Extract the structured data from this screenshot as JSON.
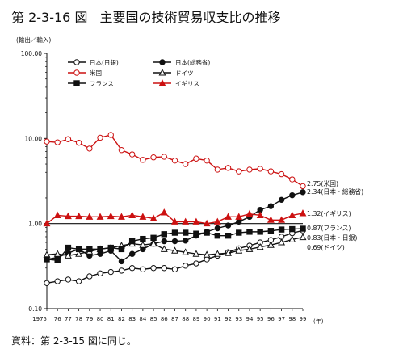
{
  "page": {
    "figure_number": "第 2-3-16 図",
    "figure_title": "主要国の技術貿易収支比の推移",
    "source_note": "資料：第 2-3-15 図に同じ。"
  },
  "chart_data": {
    "type": "line",
    "title": "主要国の技術貿易収支比の推移",
    "ylabel": "(輸出／輸入)",
    "xlabel": "(年)",
    "yscale": "log",
    "ylim": [
      0.1,
      100
    ],
    "yticks": [
      100,
      10,
      1,
      0.1
    ],
    "ytick_labels": [
      "100.00",
      "10.00",
      "1.00",
      "0.10"
    ],
    "reference_line": 1,
    "x": [
      1975,
      1976,
      1977,
      1978,
      1979,
      1980,
      1981,
      1982,
      1983,
      1984,
      1985,
      1986,
      1987,
      1988,
      1989,
      1990,
      1991,
      1992,
      1993,
      1994,
      1995,
      1996,
      1997,
      1998,
      1999
    ],
    "xtick_labels": [
      "1975",
      "76",
      "77",
      "78",
      "79",
      "80",
      "81",
      "82",
      "83",
      "84",
      "85",
      "86",
      "87",
      "88",
      "89",
      "90",
      "91",
      "92",
      "93",
      "94",
      "95",
      "96",
      "97",
      "98",
      "99"
    ],
    "legend": {
      "placement": "top",
      "columns": 2
    },
    "series": [
      {
        "name": "日本(日銀)",
        "color": "#111111",
        "marker": "open-circle",
        "end_label": "0.83(日本・日銀)",
        "values": [
          0.2,
          0.21,
          0.22,
          0.21,
          0.24,
          0.26,
          0.27,
          0.28,
          0.3,
          0.29,
          0.3,
          0.3,
          0.29,
          0.32,
          0.34,
          0.38,
          0.42,
          0.46,
          0.51,
          0.55,
          0.6,
          0.64,
          0.7,
          0.77,
          0.83
        ]
      },
      {
        "name": "日本(総務省)",
        "color": "#111111",
        "marker": "filled-circle",
        "end_label": "2.34(日本・総務省)",
        "values": [
          0.38,
          0.4,
          0.45,
          0.5,
          0.42,
          0.44,
          0.48,
          0.36,
          0.44,
          0.5,
          0.58,
          0.62,
          0.62,
          0.63,
          0.72,
          0.8,
          0.88,
          0.95,
          1.05,
          1.2,
          1.45,
          1.6,
          1.9,
          2.15,
          2.34
        ]
      },
      {
        "name": "米国",
        "color": "#cc1111",
        "marker": "open-circle",
        "end_label": "2.75(米国)",
        "values": [
          9.2,
          9.0,
          9.8,
          8.9,
          7.6,
          10.2,
          11.0,
          7.3,
          6.5,
          5.6,
          6.0,
          6.1,
          5.5,
          5.0,
          5.8,
          5.5,
          4.3,
          4.5,
          4.1,
          4.3,
          4.4,
          4.1,
          3.8,
          3.3,
          2.75
        ]
      },
      {
        "name": "ドイツ",
        "color": "#111111",
        "marker": "open-triangle",
        "end_label": "0.69(ドイツ)",
        "values": [
          0.43,
          0.44,
          0.42,
          0.44,
          0.47,
          0.5,
          0.52,
          0.55,
          0.58,
          0.56,
          0.58,
          0.5,
          0.48,
          0.46,
          0.44,
          0.43,
          0.44,
          0.45,
          0.48,
          0.5,
          0.53,
          0.56,
          0.6,
          0.65,
          0.69
        ]
      },
      {
        "name": "フランス",
        "color": "#111111",
        "marker": "filled-square",
        "end_label": "0.87(フランス)",
        "values": [
          0.38,
          0.37,
          0.52,
          0.5,
          0.5,
          0.5,
          0.52,
          0.5,
          0.62,
          0.66,
          0.68,
          0.75,
          0.78,
          0.78,
          0.76,
          0.78,
          0.72,
          0.72,
          0.78,
          0.8,
          0.8,
          0.82,
          0.85,
          0.86,
          0.87
        ]
      },
      {
        "name": "イギリス",
        "color": "#cc1111",
        "marker": "filled-triangle",
        "end_label": "1.32(イギリス)",
        "values": [
          1.0,
          1.25,
          1.22,
          1.22,
          1.2,
          1.2,
          1.22,
          1.2,
          1.25,
          1.2,
          1.15,
          1.35,
          1.05,
          1.05,
          1.05,
          1.0,
          1.05,
          1.2,
          1.2,
          1.3,
          1.25,
          1.1,
          1.1,
          1.25,
          1.32
        ]
      }
    ]
  }
}
